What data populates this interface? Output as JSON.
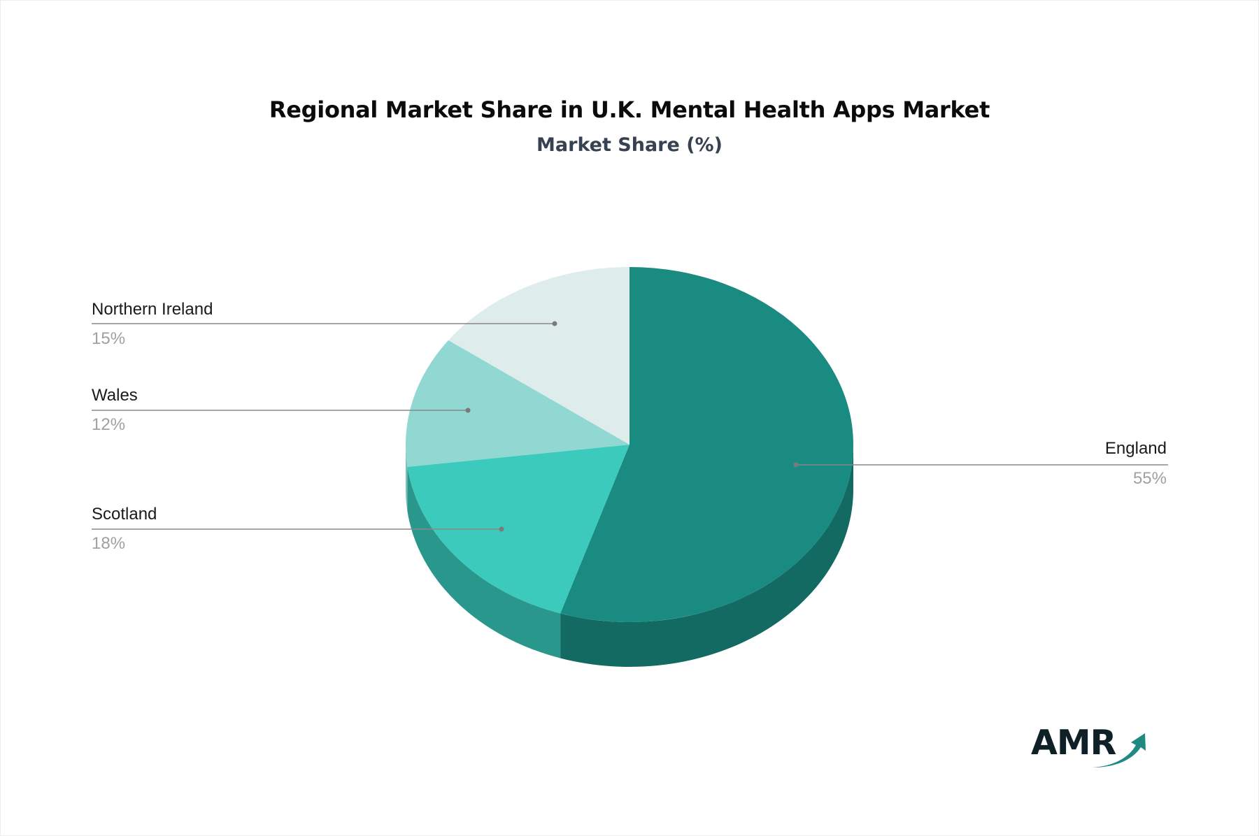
{
  "header": {
    "title": "Regional Market Share in U.K. Mental Health Apps Market",
    "subtitle": "Market Share (%)"
  },
  "logo": {
    "text": "AMR",
    "icon": "upward-arrow-icon",
    "text_color": "#0f2027",
    "arrow_color": "#1f8a83"
  },
  "labels": [
    {
      "name": "England",
      "value_text": "55%"
    },
    {
      "name": "Scotland",
      "value_text": "18%"
    },
    {
      "name": "Wales",
      "value_text": "12%"
    },
    {
      "name": "Northern Ireland",
      "value_text": "15%"
    }
  ],
  "chart_data": {
    "type": "pie",
    "style": "3d",
    "title": "Regional Market Share in U.K. Mental Health Apps Market",
    "subtitle": "Market Share (%)",
    "categories": [
      "England",
      "Scotland",
      "Wales",
      "Northern Ireland"
    ],
    "values": [
      55,
      18,
      12,
      15
    ],
    "unit": "%",
    "colors": {
      "top": [
        "#198b80",
        "#3ccabc",
        "#92d8d2",
        "#deedeb"
      ],
      "side": [
        "#126a62",
        "#2a978d",
        "#7cbfb9",
        "#c3d6d3"
      ]
    },
    "start_angle": "12 o'clock, clockwise",
    "legend": "none (callout labels)",
    "label_line_color": "#888888"
  }
}
